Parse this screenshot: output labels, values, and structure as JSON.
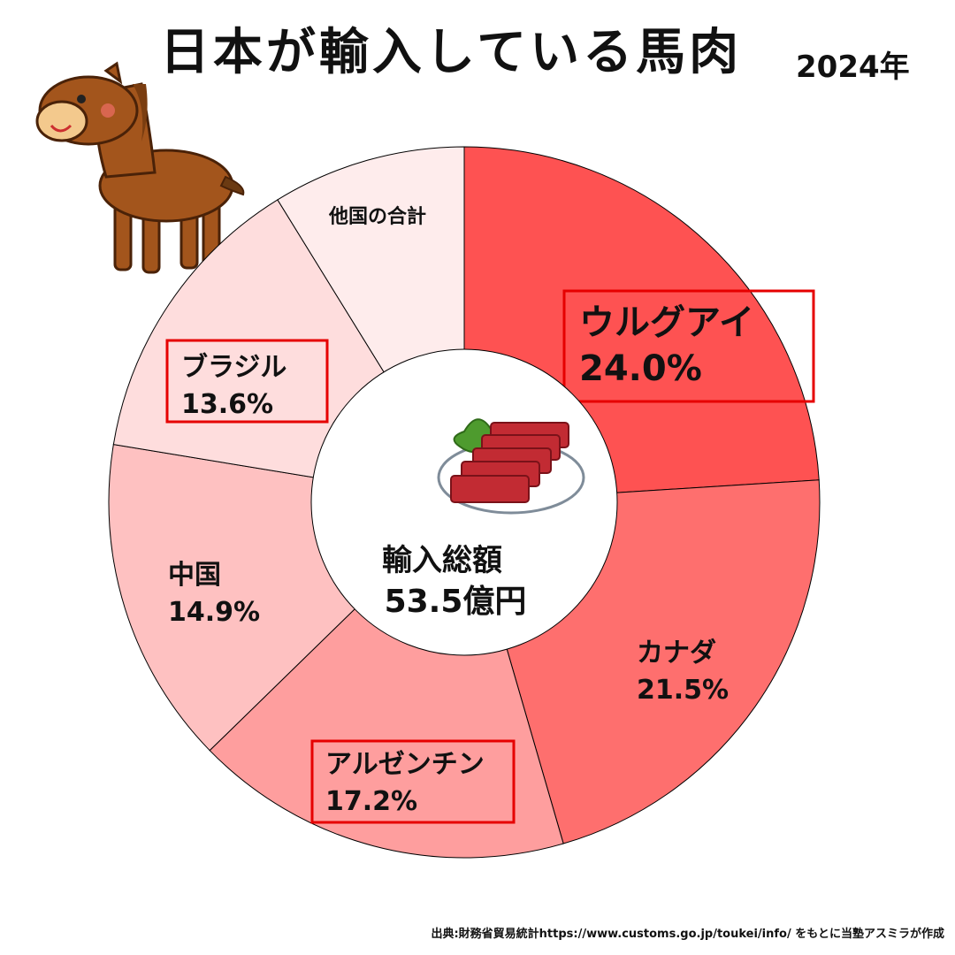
{
  "page": {
    "title": "日本が輸入している馬肉",
    "year": "2024年",
    "source": "出典:財務省貿易統計https://www.customs.go.jp/toukei/info/ をもとに当塾アスミラが作成"
  },
  "chart_data": {
    "type": "pie",
    "variant": "donut",
    "title": "日本が輸入している馬肉",
    "center_label": [
      "輸入総額",
      "53.5億円"
    ],
    "units": "%",
    "start": "12 o'clock, clockwise",
    "categories": [
      "ウルグアイ",
      "カナダ",
      "アルゼンチン",
      "中国",
      "ブラジル",
      "他国の合計"
    ],
    "values": [
      24.0,
      21.5,
      17.2,
      14.9,
      13.6,
      8.8
    ],
    "value_labels": [
      "24.0%",
      "21.5%",
      "17.2%",
      "14.9%",
      "13.6%",
      ""
    ],
    "colors": [
      "#fe5252",
      "#fe6f6e",
      "#fe9e9e",
      "#fec1c1",
      "#fedddd",
      "#feecec"
    ],
    "highlighted": [
      "ウルグアイ",
      "アルゼンチン",
      "ブラジル"
    ],
    "highlight_color": "#e60000"
  }
}
